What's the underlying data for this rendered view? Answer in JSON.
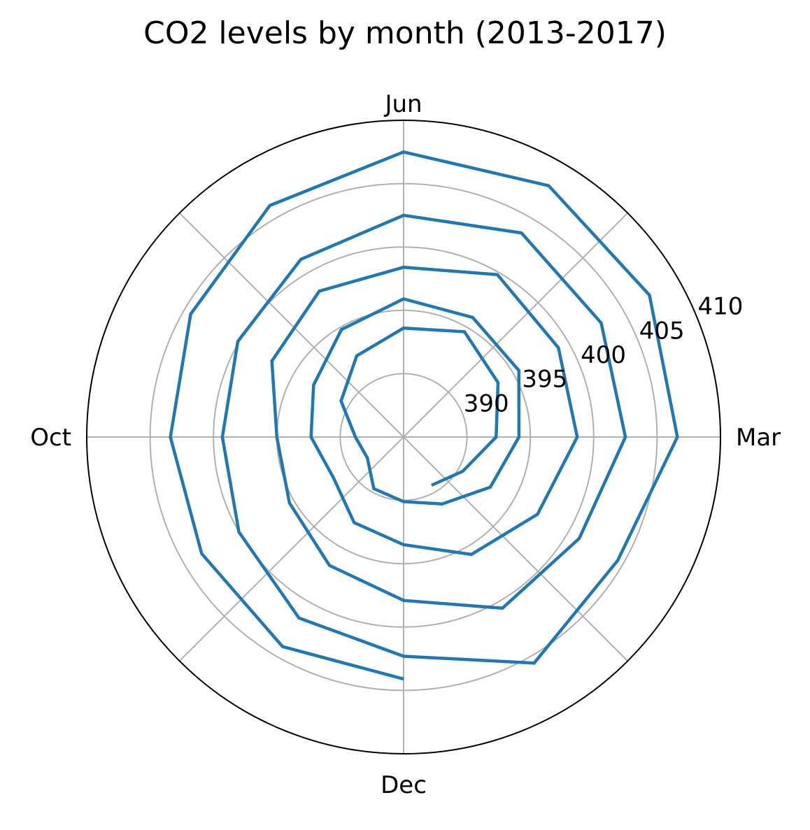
{
  "chart_data": {
    "type": "line",
    "projection": "polar",
    "title": "CO2 levels by month (2013-2017)",
    "theta_tick_labels": [
      "Mar",
      "Jun",
      "Oct",
      "Dec"
    ],
    "r_tick_labels": [
      "390",
      "395",
      "400",
      "405",
      "410"
    ],
    "r_ticks": [
      390,
      395,
      400,
      405,
      410
    ],
    "rlim": [
      385,
      410
    ],
    "grid": true,
    "line_color": "#1f77b4",
    "series": [
      {
        "x": [
          "2013-01",
          "2013-02",
          "2013-03",
          "2013-04",
          "2013-05",
          "2013-06",
          "2013-07",
          "2013-08",
          "2013-09",
          "2013-10",
          "2013-11",
          "2013-12",
          "2014-01",
          "2014-02",
          "2014-03",
          "2014-04",
          "2014-05",
          "2014-06",
          "2014-07",
          "2014-08",
          "2014-09",
          "2014-10",
          "2014-11",
          "2014-12",
          "2015-01",
          "2015-02",
          "2015-03",
          "2015-04",
          "2015-05",
          "2015-06",
          "2015-07",
          "2015-08",
          "2015-09",
          "2015-10",
          "2015-11",
          "2015-12",
          "2016-01",
          "2016-02",
          "2016-03",
          "2016-04",
          "2016-05",
          "2016-06",
          "2016-07",
          "2016-08",
          "2016-09",
          "2016-10",
          "2016-11",
          "2016-12",
          "2017-01",
          "2017-02",
          "2017-03",
          "2017-04",
          "2017-05",
          "2017-06",
          "2017-07",
          "2017-08",
          "2017-09",
          "2017-10",
          "2017-11",
          "2017-12"
        ],
        "y": [
          389.4,
          390.4,
          392.3,
          393.6,
          394.6,
          393.6,
          392.4,
          390.7,
          388.8,
          388.3,
          389.7,
          390.1,
          391.1,
          392.9,
          394.1,
          395.5,
          395.9,
          395.9,
          394.8,
          393.2,
          392.3,
          391.4,
          392.8,
          393.5,
          395.7,
          397.2,
          398.7,
          399.1,
          399.8,
          398.4,
          398.3,
          397.0,
          395.0,
          395.4,
          396.7,
          397.9,
          400.6,
          401.0,
          402.5,
          403.0,
          403.6,
          402.5,
          401.2,
          400.1,
          399.3,
          400.0,
          401.5,
          402.3,
          405.6,
          404.5,
          406.6,
          407.4,
          407.9,
          407.5,
          406.1,
          404.4,
          403.4,
          403.4,
          404.1,
          404.1
        ]
      }
    ]
  }
}
